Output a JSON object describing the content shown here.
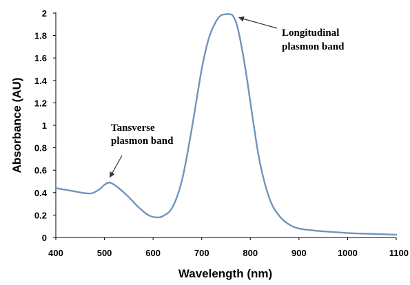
{
  "chart_data": {
    "type": "line",
    "title": "",
    "xlabel": "Wavelength (nm)",
    "ylabel": "Absorbance (AU)",
    "xlim": [
      400,
      1100
    ],
    "ylim": [
      0,
      2
    ],
    "x_ticks": [
      "400",
      "500",
      "600",
      "700",
      "800",
      "900",
      "1000",
      "1100"
    ],
    "y_ticks": [
      "0",
      "0.2",
      "0.4",
      "0.6",
      "0.8",
      "1",
      "1.2",
      "1.4",
      "1.6",
      "1.8",
      "2"
    ],
    "grid": false,
    "legend": "none",
    "line_color": "#7094bd",
    "series": [
      {
        "x": [
          400,
          420,
          440,
          460,
          475,
          490,
          500,
          510,
          520,
          535,
          550,
          570,
          590,
          605,
          620,
          640,
          660,
          680,
          700,
          715,
          730,
          740,
          750,
          757,
          765,
          775,
          790,
          805,
          820,
          840,
          860,
          880,
          900,
          925,
          950,
          1000,
          1050,
          1100
        ],
        "y": [
          0.44,
          0.425,
          0.41,
          0.395,
          0.395,
          0.43,
          0.47,
          0.49,
          0.47,
          0.42,
          0.36,
          0.27,
          0.2,
          0.18,
          0.19,
          0.27,
          0.52,
          0.98,
          1.5,
          1.78,
          1.93,
          1.98,
          1.99,
          1.99,
          1.97,
          1.85,
          1.5,
          1.06,
          0.66,
          0.34,
          0.19,
          0.115,
          0.08,
          0.065,
          0.055,
          0.04,
          0.032,
          0.025
        ]
      }
    ],
    "annotations": [
      {
        "lines": [
          "Tansverse",
          "plasmon band"
        ],
        "target_x": 510,
        "target_y": 0.49
      },
      {
        "lines": [
          "Longitudinal",
          "plasmon band"
        ],
        "target_x": 757,
        "target_y": 1.99
      }
    ]
  }
}
